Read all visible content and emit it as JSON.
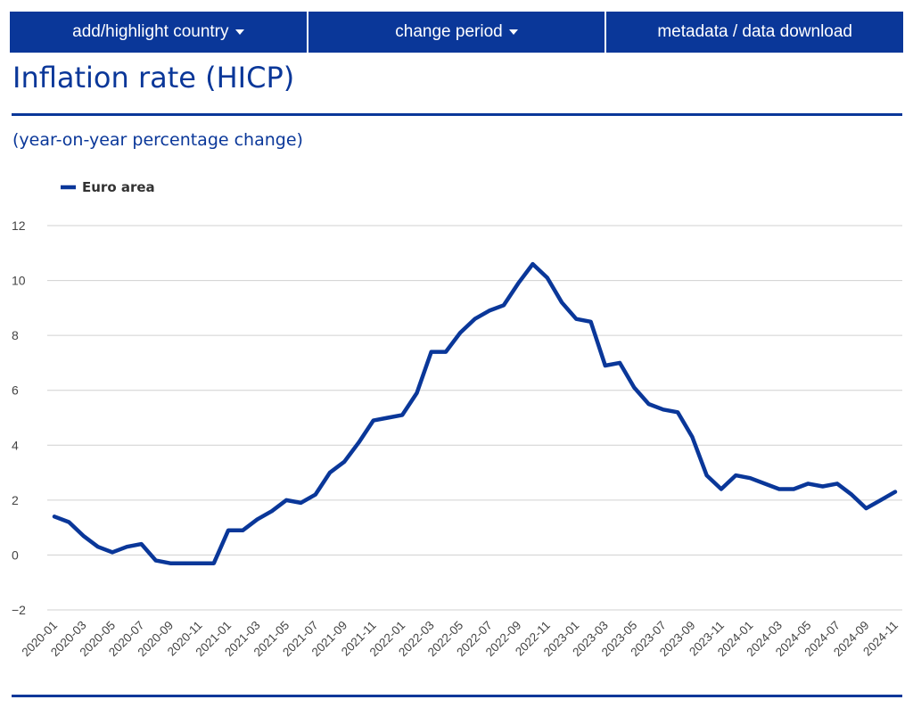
{
  "nav": {
    "add_highlight": "add/highlight country",
    "change_period": "change period",
    "metadata": "metadata / data download"
  },
  "page": {
    "title": "Inflation rate (HICP)",
    "subtitle": "(year-on-year percentage change)"
  },
  "colors": {
    "brand": "#0a3799",
    "grid": "#d0d0d0",
    "axis_text": "#444444"
  },
  "icons": {
    "dropdown": "caret-down-icon"
  },
  "chart_data": {
    "type": "line",
    "title": "Inflation rate (HICP)",
    "subtitle": "(year-on-year percentage change)",
    "xlabel": "",
    "ylabel": "",
    "ylim": [
      -2,
      12
    ],
    "yticks": [
      -2,
      0,
      2,
      4,
      6,
      8,
      10,
      12
    ],
    "grid": true,
    "legend_position": "top-left",
    "x_tick_labels": [
      "2020-01",
      "2020-03",
      "2020-05",
      "2020-07",
      "2020-09",
      "2020-11",
      "2021-01",
      "2021-03",
      "2021-05",
      "2021-07",
      "2021-09",
      "2021-11",
      "2022-01",
      "2022-03",
      "2022-05",
      "2022-07",
      "2022-09",
      "2022-11",
      "2023-01",
      "2023-03",
      "2023-05",
      "2023-07",
      "2023-09",
      "2023-11",
      "2024-01",
      "2024-03",
      "2024-05",
      "2024-07",
      "2024-09",
      "2024-11"
    ],
    "x": [
      "2020-01",
      "2020-02",
      "2020-03",
      "2020-04",
      "2020-05",
      "2020-06",
      "2020-07",
      "2020-08",
      "2020-09",
      "2020-10",
      "2020-11",
      "2020-12",
      "2021-01",
      "2021-02",
      "2021-03",
      "2021-04",
      "2021-05",
      "2021-06",
      "2021-07",
      "2021-08",
      "2021-09",
      "2021-10",
      "2021-11",
      "2021-12",
      "2022-01",
      "2022-02",
      "2022-03",
      "2022-04",
      "2022-05",
      "2022-06",
      "2022-07",
      "2022-08",
      "2022-09",
      "2022-10",
      "2022-11",
      "2022-12",
      "2023-01",
      "2023-02",
      "2023-03",
      "2023-04",
      "2023-05",
      "2023-06",
      "2023-07",
      "2023-08",
      "2023-09",
      "2023-10",
      "2023-11",
      "2023-12",
      "2024-01",
      "2024-02",
      "2024-03",
      "2024-04",
      "2024-05",
      "2024-06",
      "2024-07",
      "2024-08",
      "2024-09",
      "2024-10",
      "2024-11"
    ],
    "series": [
      {
        "name": "Euro area",
        "color": "#0a3799",
        "values": [
          1.4,
          1.2,
          0.7,
          0.3,
          0.1,
          0.3,
          0.4,
          -0.2,
          -0.3,
          -0.3,
          -0.3,
          -0.3,
          0.9,
          0.9,
          1.3,
          1.6,
          2.0,
          1.9,
          2.2,
          3.0,
          3.4,
          4.1,
          4.9,
          5.0,
          5.1,
          5.9,
          7.4,
          7.4,
          8.1,
          8.6,
          8.9,
          9.1,
          9.9,
          10.6,
          10.1,
          9.2,
          8.6,
          8.5,
          6.9,
          7.0,
          6.1,
          5.5,
          5.3,
          5.2,
          4.3,
          2.9,
          2.4,
          2.9,
          2.8,
          2.6,
          2.4,
          2.4,
          2.6,
          2.5,
          2.6,
          2.2,
          1.7,
          2.0,
          2.3
        ]
      }
    ]
  }
}
